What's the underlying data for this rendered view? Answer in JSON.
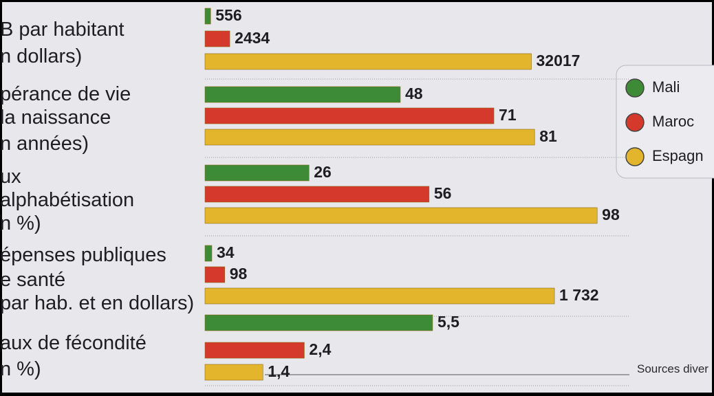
{
  "chart_data": [
    {
      "type": "bar",
      "title": [
        "B par habitant",
        "n dollars)"
      ],
      "xlim": [
        0,
        47500
      ],
      "series": [
        {
          "name": "Mali",
          "color": "#3e8b37",
          "values": [
            556
          ]
        },
        {
          "name": "Maroc",
          "color": "#d5392c",
          "values": [
            2434
          ]
        },
        {
          "name": "Espagn",
          "color": "#e2b52c",
          "values": [
            32017
          ]
        }
      ]
    },
    {
      "type": "bar",
      "title": [
        "pérance de vie",
        "la naissance",
        "n années)"
      ],
      "xlim": [
        0,
        119
      ],
      "series": [
        {
          "color": "#3e8b37",
          "values": [
            48
          ]
        },
        {
          "color": "#d5392c",
          "values": [
            71
          ]
        },
        {
          "color": "#e2b52c",
          "values": [
            81
          ]
        }
      ]
    },
    {
      "type": "bar",
      "title": [
        "ux",
        "alphabétisation",
        "n %)"
      ],
      "xlim": [
        0,
        121
      ],
      "series": [
        {
          "color": "#3e8b37",
          "values": [
            26
          ]
        },
        {
          "color": "#d5392c",
          "values": [
            56
          ]
        },
        {
          "color": "#e2b52c",
          "values": [
            98
          ]
        }
      ]
    },
    {
      "type": "bar",
      "title": [
        "épenses publiques",
        "e santé",
        "par hab. et en dollars)"
      ],
      "xlim": [
        0,
        2400
      ],
      "series": [
        {
          "color": "#3e8b37",
          "values": [
            34
          ]
        },
        {
          "color": "#d5392c",
          "values": [
            98
          ]
        },
        {
          "color": "#e2b52c",
          "values": [
            1732
          ],
          "value_labels": [
            "1 732"
          ]
        }
      ]
    },
    {
      "type": "bar",
      "title": [
        "aux de fécondité",
        "n %)"
      ],
      "xlim": [
        0,
        11.7
      ],
      "series": [
        {
          "color": "#3e8b37",
          "values": [
            5.5
          ],
          "value_labels": [
            "5,5"
          ]
        },
        {
          "color": "#d5392c",
          "values": [
            2.4
          ],
          "value_labels": [
            "2,4"
          ]
        },
        {
          "color": "#e2b52c",
          "values": [
            1.4
          ],
          "value_labels": [
            "1,4"
          ]
        }
      ]
    }
  ],
  "source": "Sources diver"
}
